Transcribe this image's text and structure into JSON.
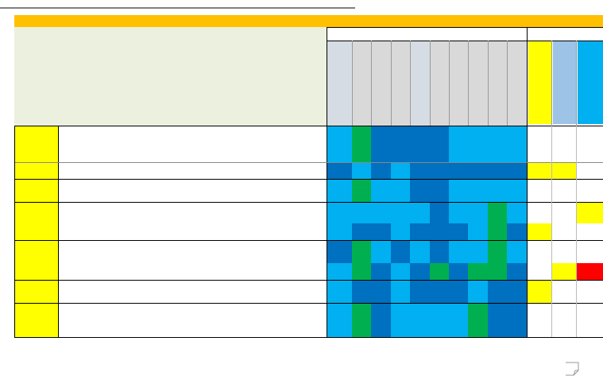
{
  "header": {
    "band_color": "#ffc000",
    "title_area_color": "#ebf1de",
    "column_colors": [
      "#d6dce4",
      "#d9d9d9",
      "#d9d9d9",
      "#d9d9d9",
      "#d6dce4",
      "#d9d9d9",
      "#d9d9d9",
      "#d9d9d9",
      "#d9d9d9",
      "#d9d9d9",
      "#ffff00",
      "#9dc3e6",
      "#00b0f0"
    ]
  },
  "body": {
    "side_color": "#ffff00",
    "rows": [
      [
        "#00b0f0",
        "#00b050",
        "#0070c0",
        "#0070c0",
        "#0070c0",
        "#0070c0",
        "#00b0f0",
        "#00b0f0",
        "#00b0f0",
        "#00b0f0",
        "#ffffff",
        "#ffffff",
        "#ffffff"
      ],
      [
        "#0070c0",
        "#00b0f0",
        "#0070c0",
        "#00b0f0",
        "#0070c0",
        "#0070c0",
        "#0070c0",
        "#0070c0",
        "#0070c0",
        "#0070c0",
        "#ffff00",
        "#ffff00",
        "#ffffff"
      ],
      [
        "#00b0f0",
        "#00b050",
        "#00b0f0",
        "#00b0f0",
        "#0070c0",
        "#0070c0",
        "#00b0f0",
        "#00b0f0",
        "#00b0f0",
        "#00b0f0",
        "#ffffff",
        "#ffffff",
        "#ffffff"
      ],
      [
        "#00b0f0",
        "#00b0f0",
        "#00b0f0",
        "#00b0f0",
        "#00b0f0",
        "#0070c0",
        "#00b0f0",
        "#00b0f0",
        "#00b050",
        "#00b0f0",
        "#ffffff",
        "#ffffff",
        "#ffff00"
      ],
      [
        "#00b0f0",
        "#0070c0",
        "#0070c0",
        "#00b0f0",
        "#0070c0",
        "#0070c0",
        "#0070c0",
        "#00b0f0",
        "#00b050",
        "#0070c0",
        "#ffff00",
        "#ffffff",
        "#ffffff"
      ],
      [
        "#0070c0",
        "#00b050",
        "#00b0f0",
        "#0070c0",
        "#00b0f0",
        "#0070c0",
        "#00b0f0",
        "#00b0f0",
        "#00b050",
        "#00b0f0",
        "#ffffff",
        "#ffffff",
        "#ffffff"
      ],
      [
        "#00b0f0",
        "#00b050",
        "#0070c0",
        "#00b0f0",
        "#0070c0",
        "#00b050",
        "#0070c0",
        "#00b050",
        "#00b050",
        "#0070c0",
        "#ffffff",
        "#ffff00",
        "#ff0000"
      ],
      [
        "#00b0f0",
        "#0070c0",
        "#0070c0",
        "#00b0f0",
        "#0070c0",
        "#0070c0",
        "#0070c0",
        "#00b0f0",
        "#0070c0",
        "#0070c0",
        "#ffff00",
        "#ffffff",
        "#ffffff"
      ],
      [
        "#00b0f0",
        "#00b050",
        "#0070c0",
        "#00b0f0",
        "#00b0f0",
        "#00b0f0",
        "#00b0f0",
        "#00b050",
        "#0070c0",
        "#0070c0",
        "#ffffff",
        "#ffffff",
        "#ffffff"
      ]
    ]
  }
}
